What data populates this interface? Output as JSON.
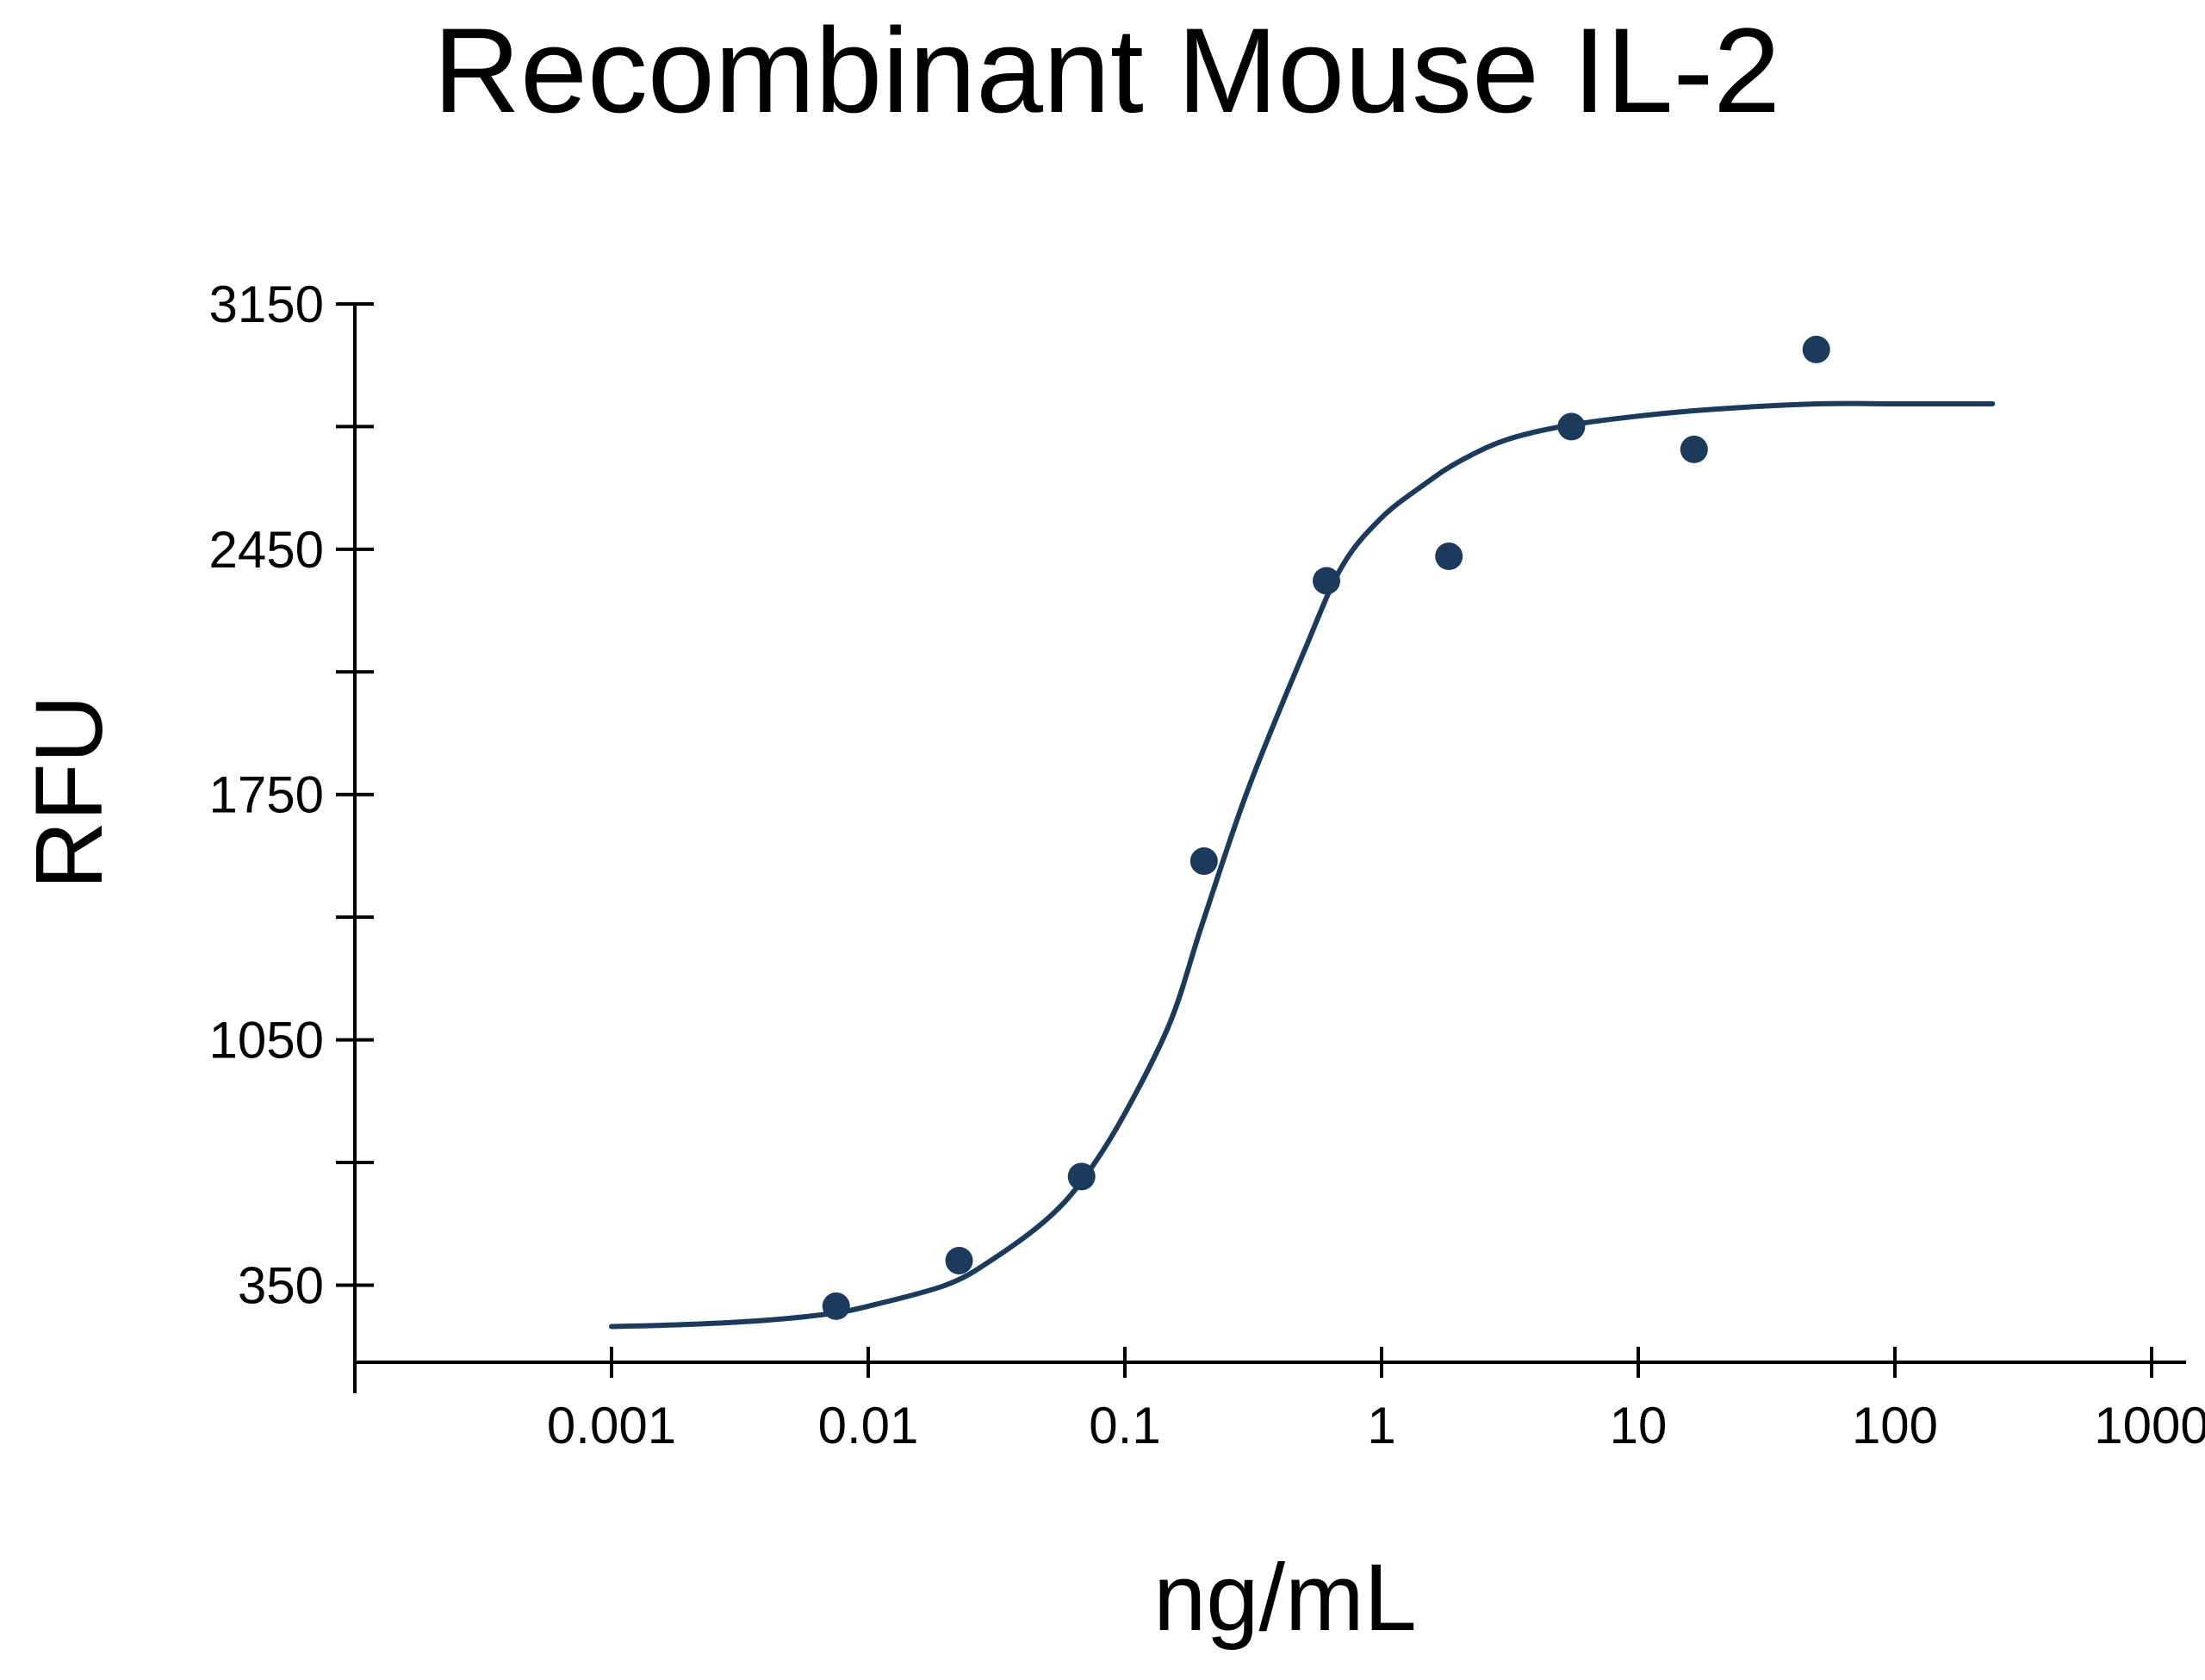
{
  "chart_data": {
    "type": "scatter",
    "title": "Recombinant Mouse IL-2",
    "xlabel": "ng/mL",
    "ylabel": "RFU",
    "x_scale": "log",
    "xlim": [
      0.0001,
      1000
    ],
    "ylim": [
      130,
      3150
    ],
    "x_ticks": [
      {
        "value": 0.0001,
        "label": ""
      },
      {
        "value": 0.001,
        "label": "0.001"
      },
      {
        "value": 0.01,
        "label": "0.01"
      },
      {
        "value": 0.1,
        "label": "0.1"
      },
      {
        "value": 1,
        "label": "1"
      },
      {
        "value": 10,
        "label": "10"
      },
      {
        "value": 100,
        "label": "100"
      },
      {
        "value": 1000,
        "label": "1000"
      }
    ],
    "y_ticks": [
      {
        "value": 350,
        "label": "350"
      },
      {
        "value": 700,
        "label": ""
      },
      {
        "value": 1050,
        "label": "1050"
      },
      {
        "value": 1400,
        "label": ""
      },
      {
        "value": 1750,
        "label": "1750"
      },
      {
        "value": 2100,
        "label": ""
      },
      {
        "value": 2450,
        "label": "2450"
      },
      {
        "value": 2800,
        "label": ""
      },
      {
        "value": 3150,
        "label": "3150"
      }
    ],
    "grid": false,
    "series": [
      {
        "kind": "points",
        "color": "#1b3a5c",
        "x": [
          0.0075,
          0.0226,
          0.0678,
          0.2033,
          0.61,
          1.83,
          5.49,
          16.5,
          49.4
        ],
        "y": [
          290,
          420,
          660,
          1560,
          2360,
          2430,
          2800,
          2735,
          3020
        ]
      },
      {
        "kind": "fit-curve",
        "color": "#1b3a5c",
        "x": [
          0.001,
          0.002,
          0.004,
          0.007,
          0.01,
          0.02,
          0.03,
          0.05,
          0.07,
          0.1,
          0.15,
          0.2,
          0.3,
          0.5,
          0.7,
          1,
          1.5,
          2,
          3,
          5,
          10,
          20,
          50,
          100,
          240
        ],
        "y": [
          232,
          238,
          250,
          268,
          290,
          350,
          420,
          540,
          660,
          840,
          1100,
          1380,
          1760,
          2160,
          2400,
          2540,
          2640,
          2700,
          2760,
          2800,
          2830,
          2850,
          2865,
          2865,
          2865
        ]
      }
    ]
  }
}
